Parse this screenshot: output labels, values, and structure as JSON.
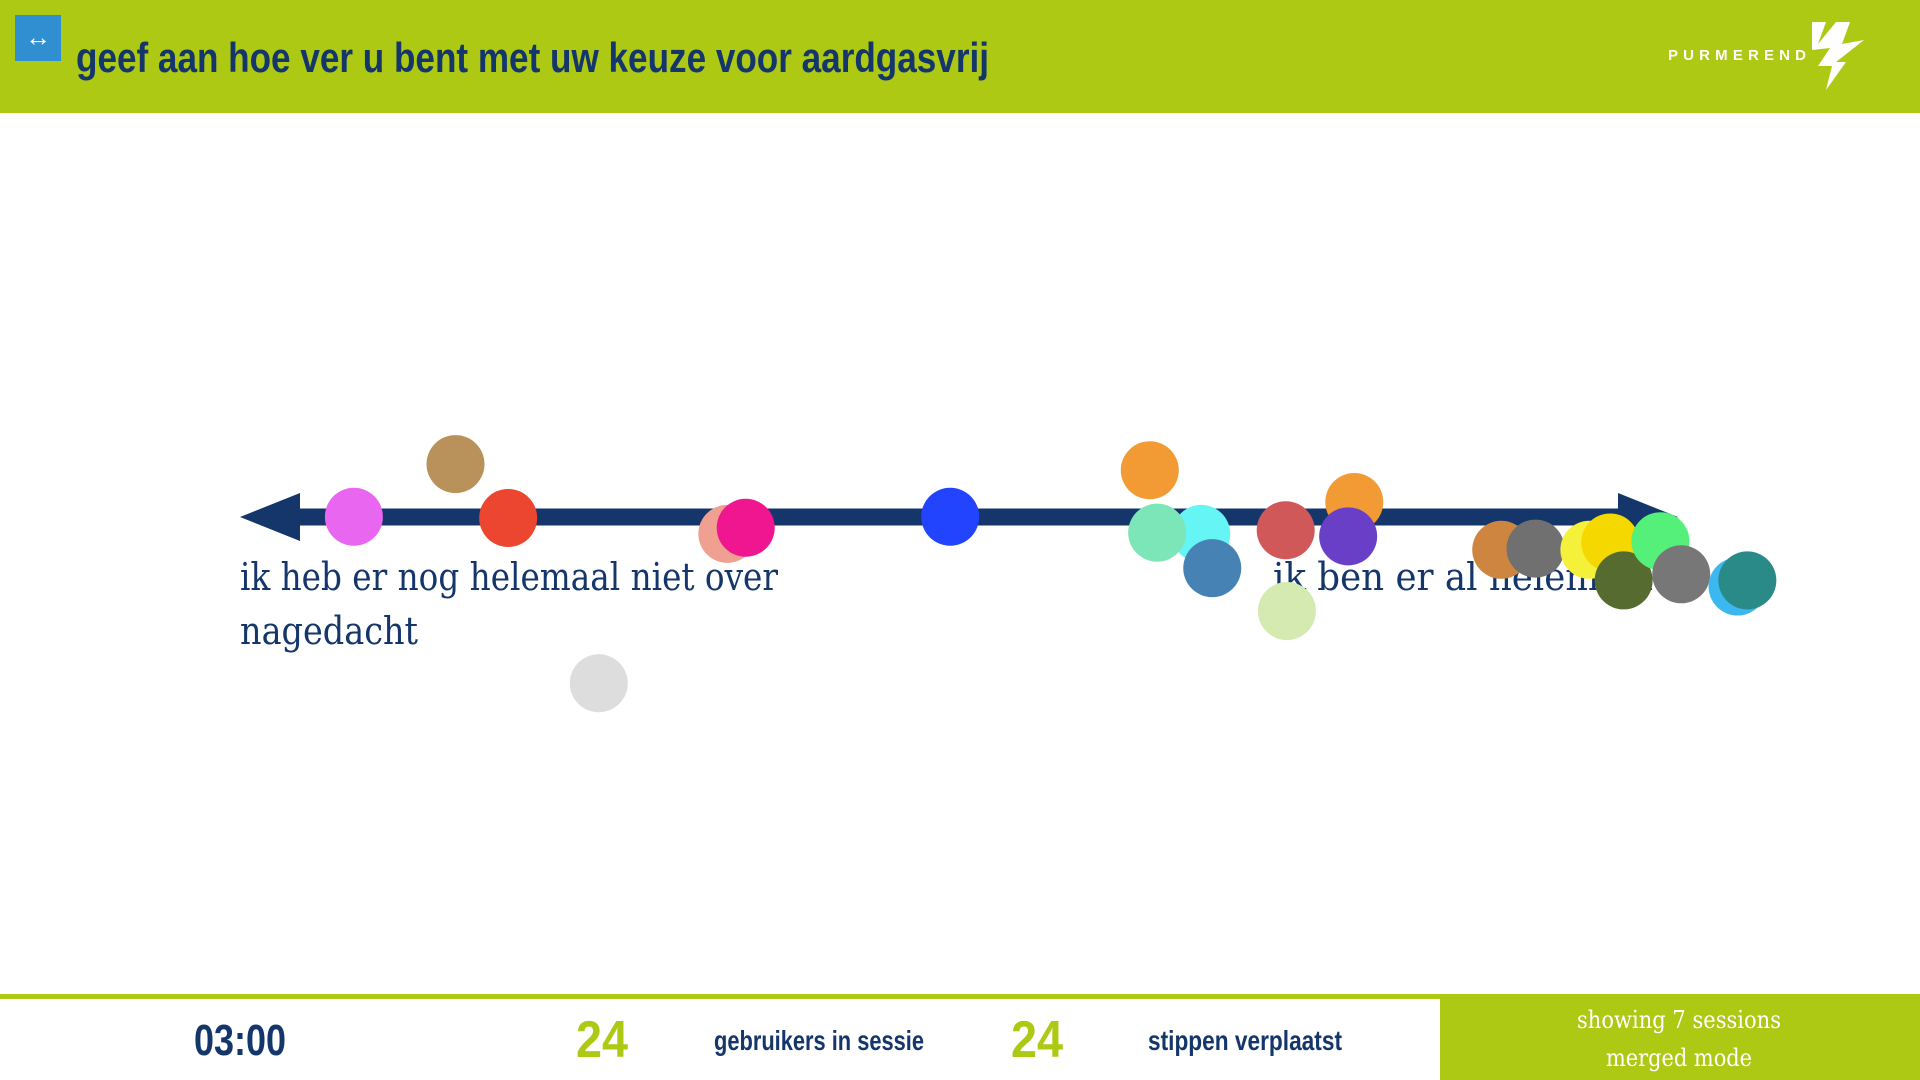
{
  "header": {
    "icon": "↔",
    "title": "geef aan hoe ver u bent met uw keuze voor aardgasvrij",
    "logo": "PURMEREND"
  },
  "scale": {
    "left_label_line1": "ik heb er nog helemaal niet over",
    "left_label_line2": "nagedacht",
    "right_label": "ik ben er al helemaal"
  },
  "footer": {
    "timer": "03:00",
    "users_count": "24",
    "users_label": "gebruikers in sessie",
    "moved_count": "24",
    "moved_label": "stippen verplaatst",
    "sessions": "showing 7 sessions",
    "mode": "merged mode"
  }
}
